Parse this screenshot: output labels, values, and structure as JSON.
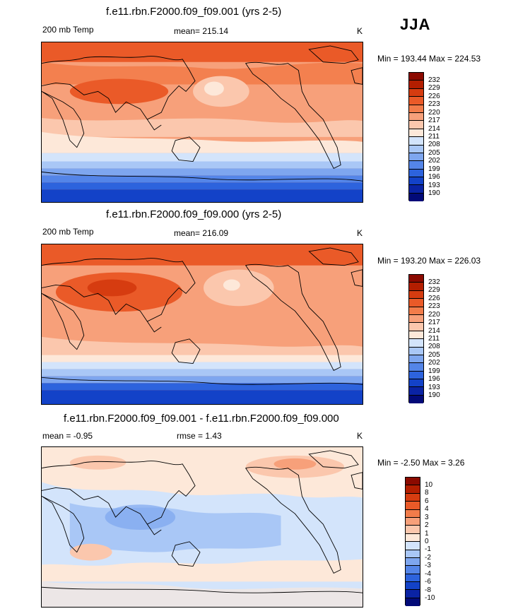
{
  "season": "JJA",
  "panels": [
    {
      "title": "f.e11.rbn.F2000.f09_f09.001 (yrs 2-5)",
      "left_label": "200 mb Temp",
      "mean_label": "mean= 215.14",
      "units": "K",
      "minmax": "Min = 193.44 Max = 224.53",
      "colorbar_labels": [
        "232",
        "229",
        "226",
        "223",
        "220",
        "217",
        "214",
        "211",
        "208",
        "205",
        "202",
        "199",
        "196",
        "193",
        "190"
      ]
    },
    {
      "title": "f.e11.rbn.F2000.f09_f09.000 (yrs 2-5)",
      "left_label": "200 mb Temp",
      "mean_label": "mean= 216.09",
      "units": "K",
      "minmax": "Min = 193.20 Max = 226.03",
      "colorbar_labels": [
        "232",
        "229",
        "226",
        "223",
        "220",
        "217",
        "214",
        "211",
        "208",
        "205",
        "202",
        "199",
        "196",
        "193",
        "190"
      ]
    },
    {
      "title": "f.e11.rbn.F2000.f09_f09.001 - f.e11.rbn.F2000.f09_f09.000",
      "left_label": "mean =  -0.95",
      "mean_label": "rmse =   1.43",
      "units": "K",
      "minmax": "Min =  -2.50 Max =   3.26",
      "colorbar_labels": [
        "10",
        "8",
        "6",
        "4",
        "3",
        "2",
        "1",
        "0",
        "-1",
        "-2",
        "-3",
        "-4",
        "-6",
        "-8",
        "-10"
      ]
    }
  ],
  "colors": {
    "temp_bar": [
      "#8b0a00",
      "#b31e00",
      "#d63c10",
      "#ea5a28",
      "#f27c4a",
      "#f7a07a",
      "#fbc7ad",
      "#fde8d9",
      "#d3e4fb",
      "#a9c7f6",
      "#7ea6ef",
      "#5485e8",
      "#2d63dd",
      "#1342c8",
      "#0a23a4",
      "#020a78"
    ],
    "diff_bar": [
      "#8b0a00",
      "#b31e00",
      "#d63c10",
      "#ea5a28",
      "#f27c4a",
      "#f7a07a",
      "#fbc7ad",
      "#fde8d9",
      "#d3e4fb",
      "#a9c7f6",
      "#7ea6ef",
      "#5485e8",
      "#2d63dd",
      "#1342c8",
      "#0a23a4",
      "#020a78"
    ]
  }
}
